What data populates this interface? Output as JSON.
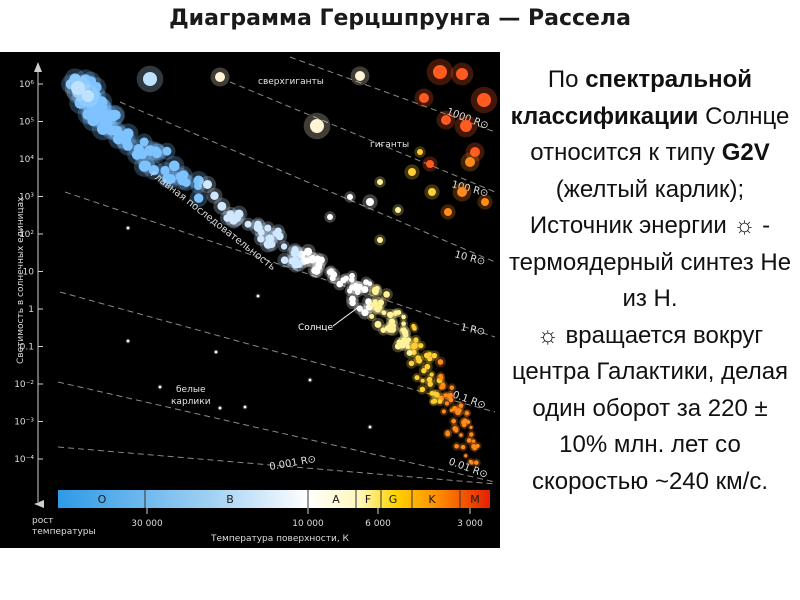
{
  "title": "Диаграмма Герцшпрунга — Рассела",
  "diagram": {
    "y_axis_label": "Светимость в солнечных единицах",
    "y_ticks": [
      "10⁶",
      "10⁵",
      "10⁴",
      "10³",
      "10²",
      "10",
      "1",
      "0.1",
      "10⁻²",
      "10⁻³",
      "10⁻⁴"
    ],
    "x_axis_label": "Температура поверхности, К",
    "x_ticks": [
      "30 000",
      "10 000",
      "6 000",
      "3 000"
    ],
    "temp_growth_label": [
      "рост",
      "температуры"
    ],
    "spectral_classes": [
      "O",
      "B",
      "A",
      "F",
      "G",
      "K",
      "M"
    ],
    "radius_lines": [
      "1000 R⊙",
      "100 R⊙",
      "10 R⊙",
      "1 R⊙",
      "0.1 R⊙",
      "0.01 R⊙",
      "0.001 R⊙"
    ],
    "labels": {
      "supergiants": "сверхгиганты",
      "giants": "гиганты",
      "main_sequence": "главная последовательность",
      "sun": "Солнце",
      "white_dwarfs": [
        "белые",
        "карлики"
      ]
    }
  },
  "text": {
    "p1_pre": "По ",
    "p1_bold": "спектральной классификации",
    "p1_mid": " Солнце относится к типу ",
    "p1_bold2": "G2V",
    "p1_post": " (желтый карлик);",
    "p2": "Источник энергии ☼ - термоядерный синтез He из H.",
    "p3": "☼ вращается вокруг центра Галактики, делая один оборот за 220 ± 10% млн. лет со скоростью ~240 км/с."
  },
  "colors": {
    "background": "#000000",
    "O": "#3aa0e8",
    "B": "#a8d4f4",
    "A": "#ffffff",
    "F": "#fff6b0",
    "G": "#ffd400",
    "K": "#ff8c00",
    "M": "#e02000"
  }
}
